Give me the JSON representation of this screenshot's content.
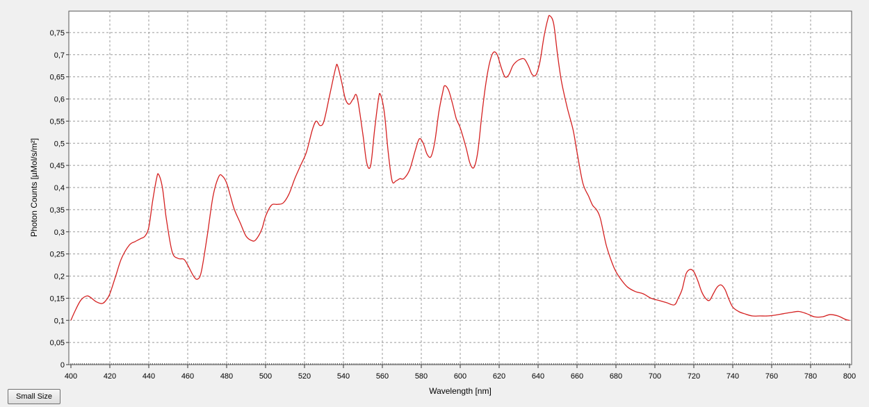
{
  "button": {
    "small_size_label": "Small Size"
  },
  "chart_data": {
    "type": "line",
    "title": "",
    "xlabel": "Wavelength [nm]",
    "ylabel": "Photon Counts [µMol/s/m²]",
    "xlim": [
      400,
      800
    ],
    "ylim": [
      0,
      0.8
    ],
    "x_ticks": [
      400,
      420,
      440,
      460,
      480,
      500,
      520,
      540,
      560,
      580,
      600,
      620,
      640,
      660,
      680,
      700,
      720,
      740,
      760,
      780,
      800
    ],
    "y_ticks": [
      0,
      0.05,
      0.1,
      0.15,
      0.2,
      0.25,
      0.3,
      0.35,
      0.4,
      0.45,
      0.5,
      0.55,
      0.6,
      0.65,
      0.7,
      0.75
    ],
    "x_tick_labels": [
      "400",
      "420",
      "440",
      "460",
      "480",
      "500",
      "520",
      "540",
      "560",
      "580",
      "600",
      "620",
      "640",
      "660",
      "680",
      "700",
      "720",
      "740",
      "760",
      "780",
      "800"
    ],
    "y_tick_labels": [
      "0",
      "0,05",
      "0,1",
      "0,15",
      "0,2",
      "0,25",
      "0,3",
      "0,35",
      "0,4",
      "0,45",
      "0,5",
      "0,55",
      "0,6",
      "0,65",
      "0,7",
      "0,75"
    ],
    "grid": true,
    "grid_style": "dashed",
    "line_color": "#d42020",
    "series": [
      {
        "x": [
          400,
          402,
          405,
          408,
          410,
          413,
          416,
          418,
          420,
          423,
          426,
          430,
          433,
          436,
          438,
          440,
          442,
          444,
          445,
          447,
          449,
          452,
          455,
          458,
          460,
          463,
          465,
          467,
          470,
          473,
          476,
          478,
          480,
          482,
          484,
          487,
          490,
          493,
          495,
          498,
          500,
          503,
          506,
          509,
          512,
          515,
          518,
          521,
          524,
          526,
          528,
          530,
          533,
          536,
          537,
          539,
          541,
          543,
          545,
          547,
          550,
          552,
          554,
          556,
          558,
          559,
          561,
          563,
          565,
          567,
          569,
          571,
          574,
          577,
          579,
          581,
          583,
          585,
          587,
          589,
          591,
          592,
          594,
          596,
          598,
          600,
          603,
          605,
          607,
          609,
          611,
          613,
          615,
          617,
          619,
          621,
          623,
          625,
          627,
          629,
          631,
          633,
          635,
          637,
          639,
          641,
          643,
          645,
          646,
          648,
          650,
          652,
          655,
          658,
          660,
          663,
          666,
          668,
          670,
          672,
          675,
          678,
          680,
          683,
          686,
          690,
          694,
          698,
          702,
          706,
          710,
          712,
          714,
          716,
          718,
          720,
          722,
          724,
          726,
          728,
          730,
          732,
          734,
          736,
          738,
          740,
          743,
          746,
          750,
          754,
          758,
          762,
          766,
          770,
          774,
          778,
          782,
          786,
          790,
          794,
          798,
          800
        ],
        "y": [
          0.1,
          0.12,
          0.145,
          0.155,
          0.152,
          0.142,
          0.138,
          0.145,
          0.16,
          0.2,
          0.24,
          0.27,
          0.278,
          0.285,
          0.29,
          0.31,
          0.37,
          0.42,
          0.43,
          0.4,
          0.33,
          0.255,
          0.24,
          0.238,
          0.225,
          0.2,
          0.193,
          0.21,
          0.29,
          0.38,
          0.425,
          0.425,
          0.41,
          0.38,
          0.35,
          0.32,
          0.29,
          0.28,
          0.282,
          0.305,
          0.335,
          0.36,
          0.362,
          0.365,
          0.385,
          0.42,
          0.45,
          0.48,
          0.53,
          0.55,
          0.54,
          0.55,
          0.61,
          0.67,
          0.675,
          0.64,
          0.6,
          0.588,
          0.6,
          0.605,
          0.52,
          0.455,
          0.45,
          0.53,
          0.6,
          0.61,
          0.57,
          0.48,
          0.415,
          0.415,
          0.42,
          0.42,
          0.44,
          0.485,
          0.51,
          0.5,
          0.475,
          0.47,
          0.505,
          0.57,
          0.615,
          0.63,
          0.62,
          0.59,
          0.555,
          0.535,
          0.49,
          0.455,
          0.445,
          0.48,
          0.56,
          0.63,
          0.68,
          0.705,
          0.7,
          0.672,
          0.65,
          0.655,
          0.675,
          0.685,
          0.69,
          0.69,
          0.675,
          0.655,
          0.655,
          0.685,
          0.74,
          0.78,
          0.788,
          0.77,
          0.7,
          0.64,
          0.58,
          0.53,
          0.48,
          0.41,
          0.38,
          0.36,
          0.35,
          0.33,
          0.27,
          0.23,
          0.21,
          0.19,
          0.175,
          0.165,
          0.16,
          0.15,
          0.145,
          0.14,
          0.135,
          0.15,
          0.17,
          0.205,
          0.215,
          0.21,
          0.19,
          0.165,
          0.15,
          0.145,
          0.16,
          0.175,
          0.18,
          0.17,
          0.148,
          0.13,
          0.12,
          0.115,
          0.11,
          0.11,
          0.11,
          0.112,
          0.115,
          0.118,
          0.12,
          0.115,
          0.108,
          0.108,
          0.113,
          0.11,
          0.102,
          0.1
        ]
      }
    ]
  }
}
